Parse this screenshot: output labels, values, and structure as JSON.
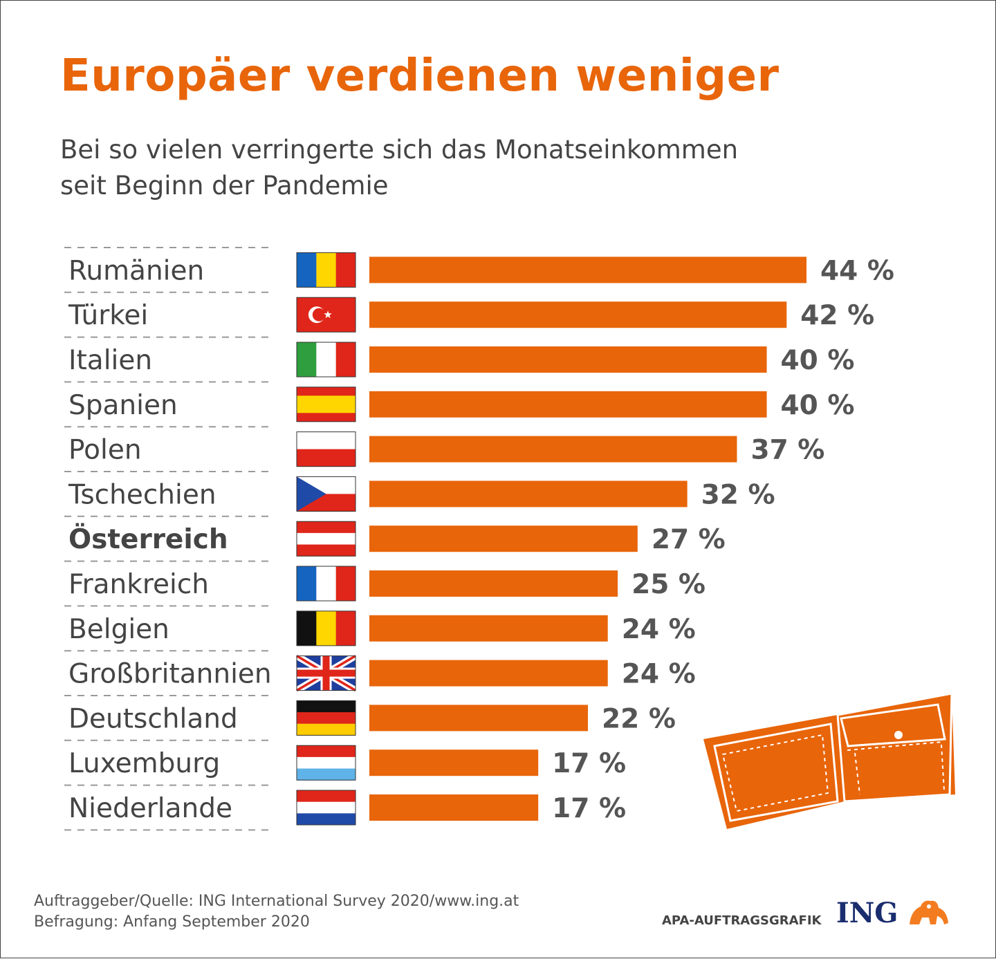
{
  "title": "Europäer verdienen weniger",
  "subtitle_line1": "Bei so vielen verringerte sich das Monatseinkommen",
  "subtitle_line2": "seit Beginn der Pandemie",
  "colors": {
    "bar": "#e8650a",
    "title": "#e8650a",
    "text": "#444444"
  },
  "chart_data": {
    "type": "bar",
    "orientation": "horizontal",
    "categories": [
      "Rumänien",
      "Türkei",
      "Italien",
      "Spanien",
      "Polen",
      "Tschechien",
      "Österreich",
      "Frankreich",
      "Belgien",
      "Großbritannien",
      "Deutschland",
      "Luxemburg",
      "Niederlande"
    ],
    "values": [
      44,
      42,
      40,
      40,
      37,
      32,
      27,
      25,
      24,
      24,
      22,
      17,
      17
    ],
    "value_labels": [
      "44 %",
      "42 %",
      "40 %",
      "40 %",
      "37 %",
      "32 %",
      "27 %",
      "25 %",
      "24 %",
      "24 %",
      "22 %",
      "17 %",
      "17 %"
    ],
    "highlight": "Österreich",
    "flags": [
      "flag-romania",
      "flag-turkey",
      "flag-italy",
      "flag-spain",
      "flag-poland",
      "flag-czechia",
      "flag-austria",
      "flag-france",
      "flag-belgium",
      "flag-uk",
      "flag-germany",
      "flag-luxembourg",
      "flag-netherlands"
    ],
    "xlim": [
      0,
      44
    ],
    "grid": false
  },
  "footer": {
    "source_line1": "Auftraggeber/Quelle: ING International Survey 2020/www.ing.at",
    "source_line2": "Befragung: Anfang September 2020",
    "credit": "APA-AUFTRAGSGRAFIK",
    "brand": "ING"
  },
  "icons": {
    "wallet": "wallet-icon",
    "lion": "ing-lion-icon"
  }
}
